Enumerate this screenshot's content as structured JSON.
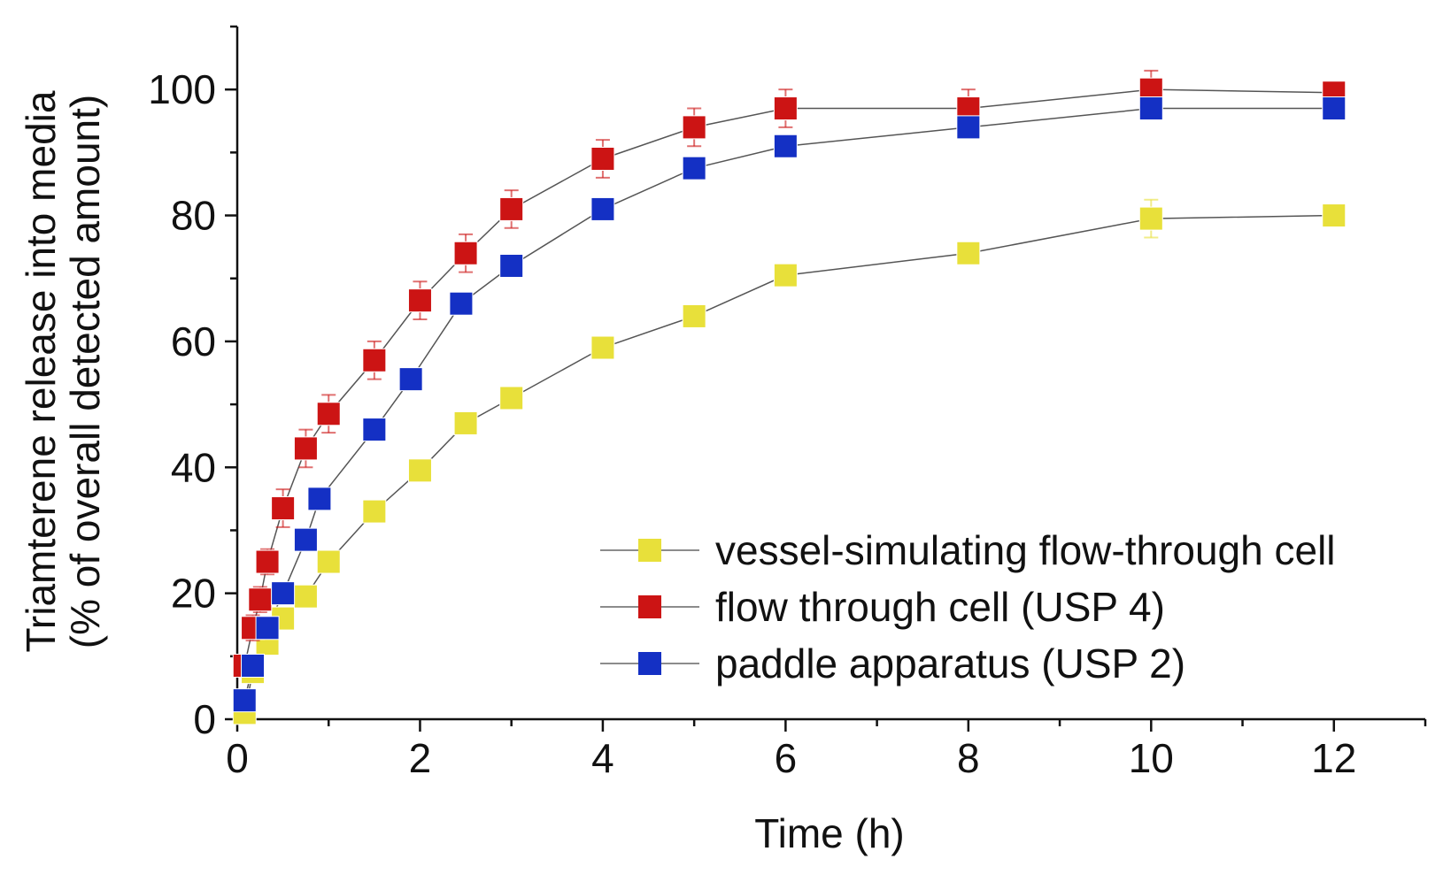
{
  "chart_data": {
    "type": "line",
    "title": "",
    "xlabel": "Time (h)",
    "ylabel_line1": "Triamterene release into media",
    "ylabel_line2": "(% of overall detected amount)",
    "xlim": [
      0,
      13
    ],
    "ylim": [
      0,
      110
    ],
    "xticks": [
      0,
      2,
      4,
      6,
      8,
      10,
      12
    ],
    "yticks": [
      0,
      20,
      40,
      60,
      80,
      100
    ],
    "legend_position": "bottom-right",
    "series": [
      {
        "name": "vessel-simulating flow-through cell",
        "color": "#e8e03a",
        "marker": "square",
        "points": [
          {
            "x": 0.08,
            "y": 1,
            "err": 0.5
          },
          {
            "x": 0.17,
            "y": 7.5,
            "err": 1
          },
          {
            "x": 0.33,
            "y": 12,
            "err": 1
          },
          {
            "x": 0.5,
            "y": 16,
            "err": 1
          },
          {
            "x": 0.75,
            "y": 19.5,
            "err": 1
          },
          {
            "x": 1,
            "y": 25,
            "err": 1
          },
          {
            "x": 1.5,
            "y": 33,
            "err": 1
          },
          {
            "x": 2,
            "y": 39.5,
            "err": 1
          },
          {
            "x": 2.5,
            "y": 47,
            "err": 1
          },
          {
            "x": 3,
            "y": 51,
            "err": 1
          },
          {
            "x": 4,
            "y": 59,
            "err": 1
          },
          {
            "x": 5,
            "y": 64,
            "err": 1
          },
          {
            "x": 6,
            "y": 70.5,
            "err": 1
          },
          {
            "x": 8,
            "y": 74,
            "err": 1
          },
          {
            "x": 10,
            "y": 79.5,
            "err": 3
          },
          {
            "x": 12,
            "y": 80,
            "err": 1
          }
        ]
      },
      {
        "name": "flow through cell (USP 4)",
        "color": "#cc1414",
        "marker": "square",
        "points": [
          {
            "x": 0.08,
            "y": 8.5,
            "err": 1
          },
          {
            "x": 0.17,
            "y": 14.5,
            "err": 2
          },
          {
            "x": 0.25,
            "y": 19,
            "err": 2
          },
          {
            "x": 0.33,
            "y": 25,
            "err": 2
          },
          {
            "x": 0.5,
            "y": 33.5,
            "err": 3
          },
          {
            "x": 0.75,
            "y": 43,
            "err": 3
          },
          {
            "x": 1,
            "y": 48.5,
            "err": 3
          },
          {
            "x": 1.5,
            "y": 57,
            "err": 3
          },
          {
            "x": 2,
            "y": 66.5,
            "err": 3
          },
          {
            "x": 2.5,
            "y": 74,
            "err": 3
          },
          {
            "x": 3,
            "y": 81,
            "err": 3
          },
          {
            "x": 4,
            "y": 89,
            "err": 3
          },
          {
            "x": 5,
            "y": 94,
            "err": 3
          },
          {
            "x": 6,
            "y": 97,
            "err": 3
          },
          {
            "x": 8,
            "y": 97,
            "err": 3
          },
          {
            "x": 10,
            "y": 100,
            "err": 3
          },
          {
            "x": 12,
            "y": 99.5,
            "err": 1
          }
        ]
      },
      {
        "name": "paddle apparatus (USP 2)",
        "color": "#1430c4",
        "marker": "square",
        "points": [
          {
            "x": 0.08,
            "y": 3,
            "err": 0.5
          },
          {
            "x": 0.17,
            "y": 8.5,
            "err": 1
          },
          {
            "x": 0.33,
            "y": 14.5,
            "err": 1
          },
          {
            "x": 0.5,
            "y": 20,
            "err": 1
          },
          {
            "x": 0.75,
            "y": 28.5,
            "err": 1
          },
          {
            "x": 0.9,
            "y": 35,
            "err": 1
          },
          {
            "x": 1.5,
            "y": 46,
            "err": 1
          },
          {
            "x": 1.9,
            "y": 54,
            "err": 1
          },
          {
            "x": 2.45,
            "y": 66,
            "err": 1
          },
          {
            "x": 3,
            "y": 72,
            "err": 1
          },
          {
            "x": 4,
            "y": 81,
            "err": 1
          },
          {
            "x": 5,
            "y": 87.5,
            "err": 1
          },
          {
            "x": 6,
            "y": 91,
            "err": 1
          },
          {
            "x": 8,
            "y": 94,
            "err": 1
          },
          {
            "x": 10,
            "y": 97,
            "err": 1
          },
          {
            "x": 12,
            "y": 97,
            "err": 1
          }
        ]
      }
    ]
  }
}
